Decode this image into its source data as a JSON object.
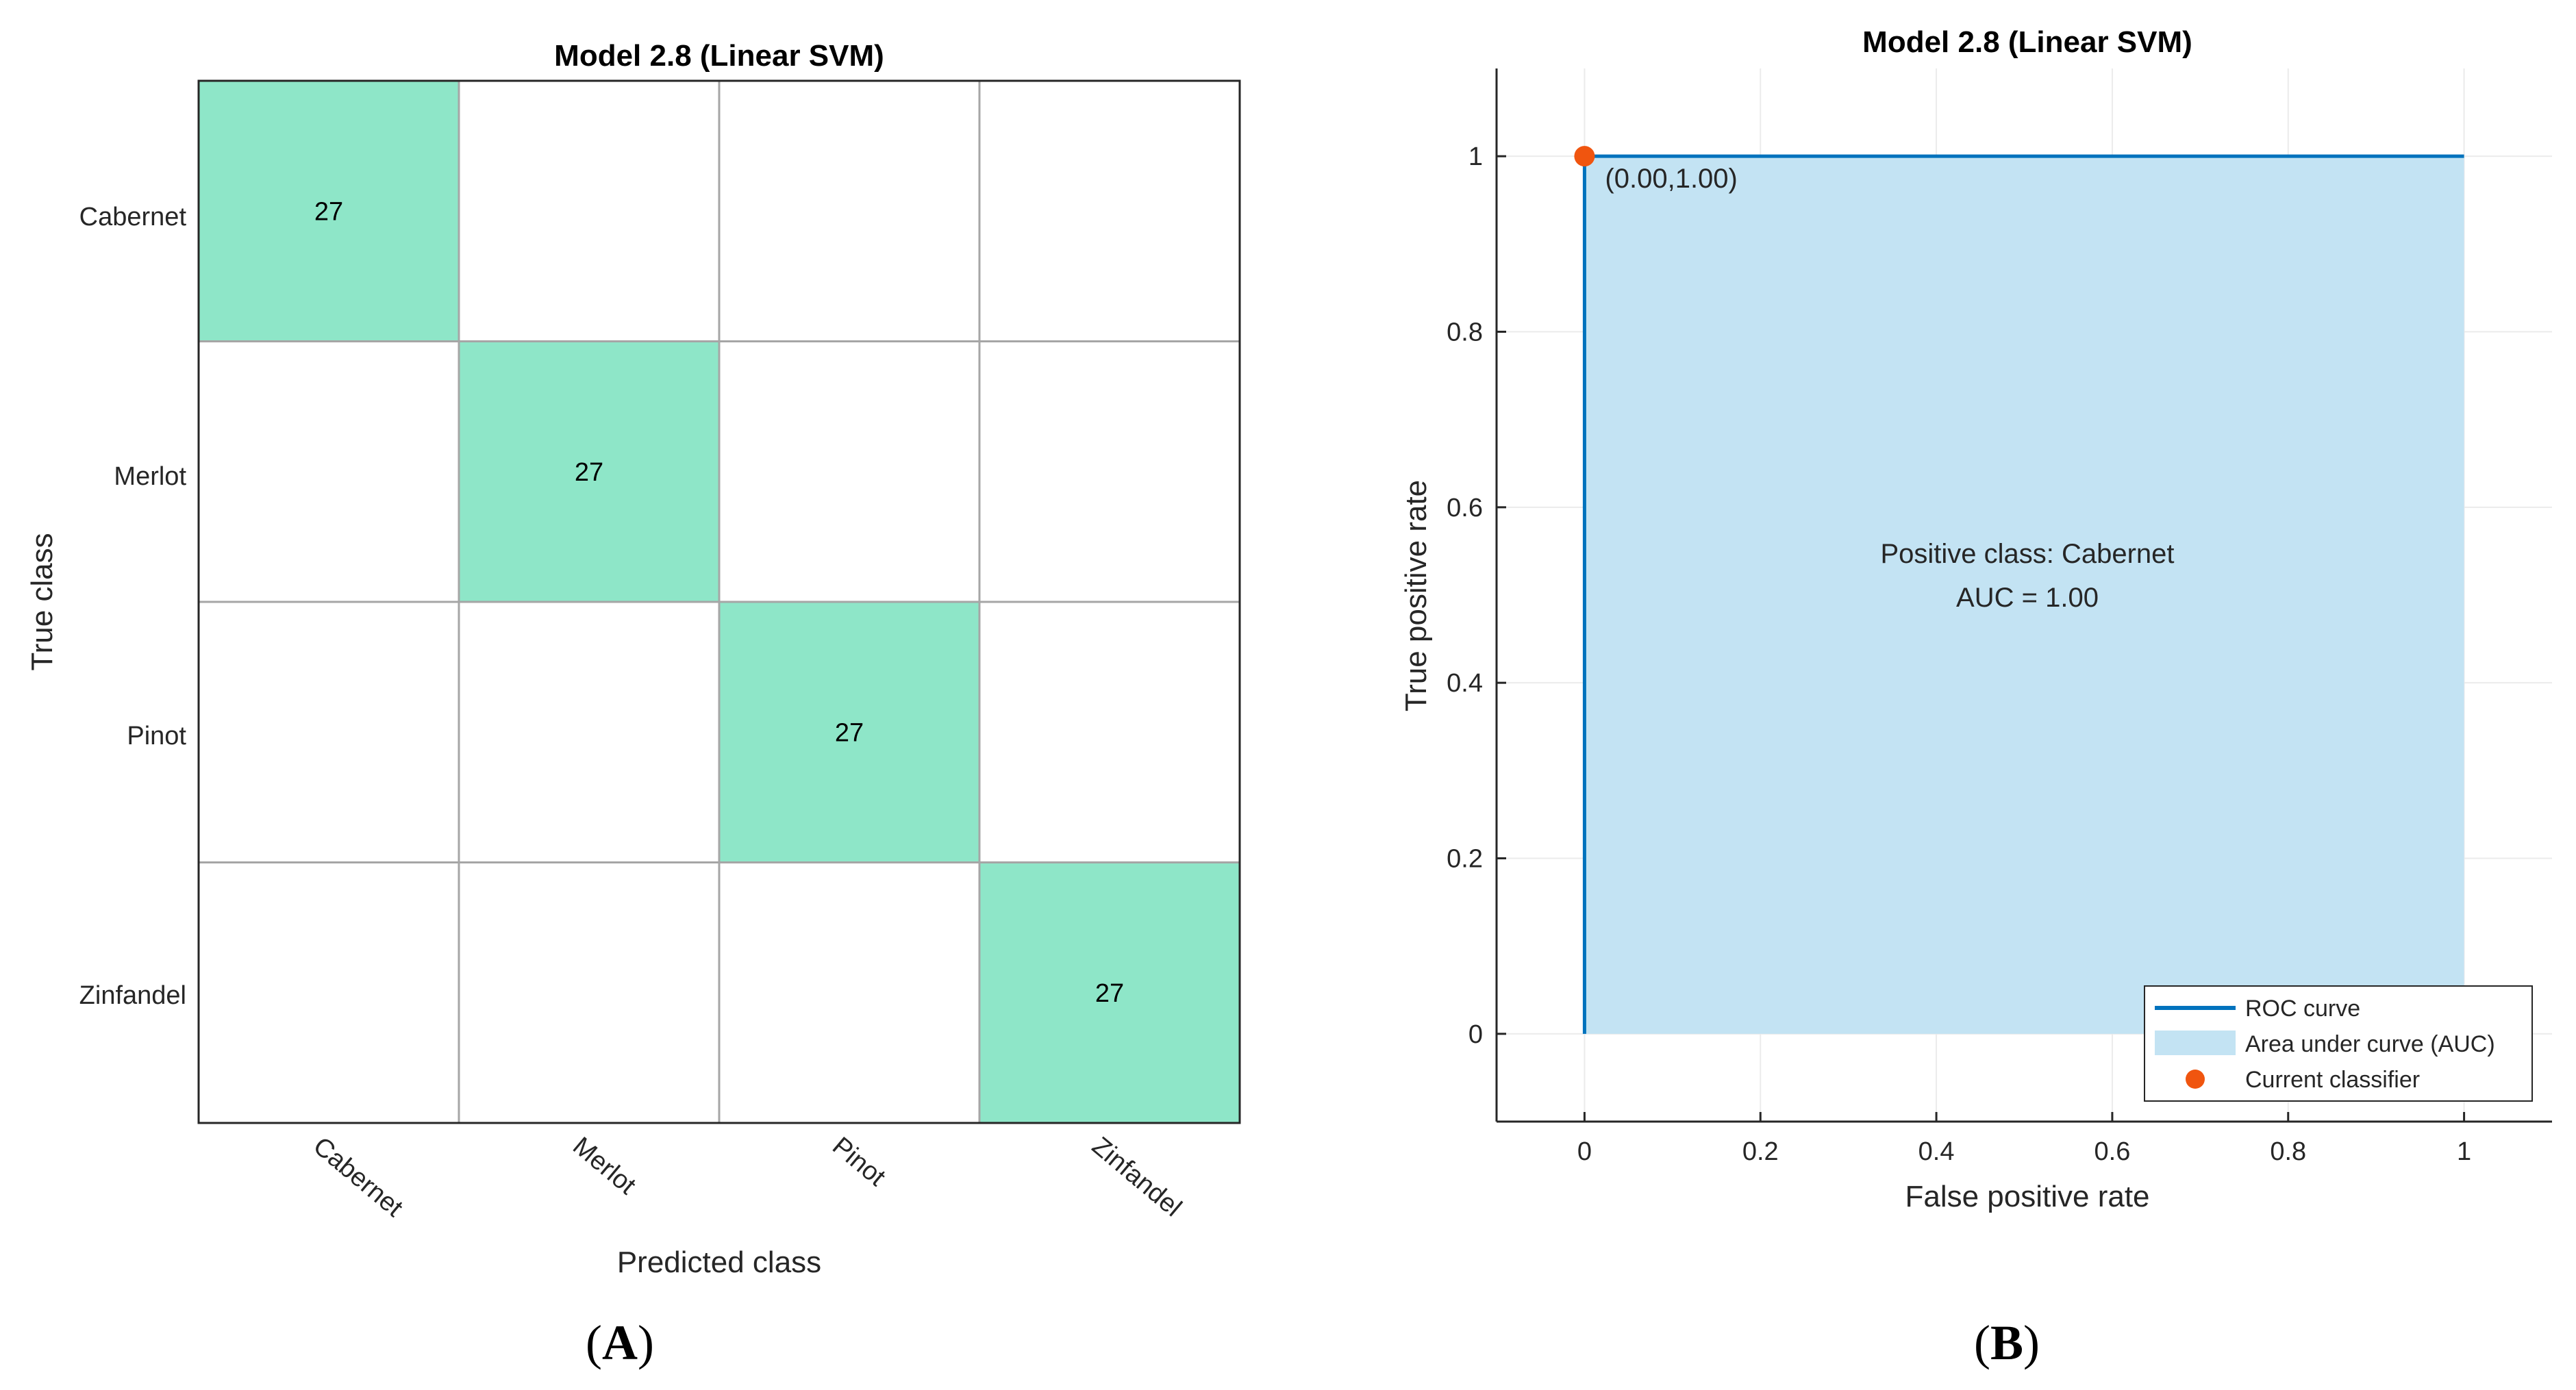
{
  "chart_data": [
    {
      "type": "heatmap",
      "title": "Model 2.8 (Linear SVM)",
      "xlabel": "Predicted class",
      "ylabel": "True class",
      "classes": [
        "Cabernet",
        "Merlot",
        "Pinot",
        "Zinfandel"
      ],
      "matrix": [
        [
          27,
          0,
          0,
          0
        ],
        [
          0,
          27,
          0,
          0
        ],
        [
          0,
          0,
          27,
          0
        ],
        [
          0,
          0,
          0,
          27
        ]
      ],
      "highlight_color": "#8ee6c8",
      "panel_label": "A"
    },
    {
      "type": "line",
      "title": "Model 2.8 (Linear SVM)",
      "xlabel": "False positive rate",
      "ylabel": "True positive rate",
      "xlim": [
        -0.1,
        1.1
      ],
      "ylim": [
        -0.1,
        1.1
      ],
      "xticks": [
        0,
        0.2,
        0.4,
        0.6,
        0.8,
        1
      ],
      "yticks": [
        0,
        0.2,
        0.4,
        0.6,
        0.8,
        1
      ],
      "xtick_labels": [
        "0",
        "0.2",
        "0.4",
        "0.6",
        "0.8",
        "1"
      ],
      "ytick_labels": [
        "0",
        "0.2",
        "0.4",
        "0.6",
        "0.8",
        "1"
      ],
      "grid": true,
      "roc_curve": {
        "x": [
          0,
          0,
          1
        ],
        "y": [
          0,
          1,
          1
        ],
        "color": "#0072bd"
      },
      "auc_fill_color": "#c3e3f3",
      "current_classifier": {
        "x": 0,
        "y": 1,
        "label": "(0.00,1.00)",
        "color": "#f0550f"
      },
      "annotations": [
        "Positive class: Cabernet",
        "AUC = 1.00"
      ],
      "legend": {
        "position": "bottom-right",
        "entries": [
          "ROC curve",
          "Area under curve (AUC)",
          "Current classifier"
        ]
      },
      "panel_label": "B"
    }
  ]
}
